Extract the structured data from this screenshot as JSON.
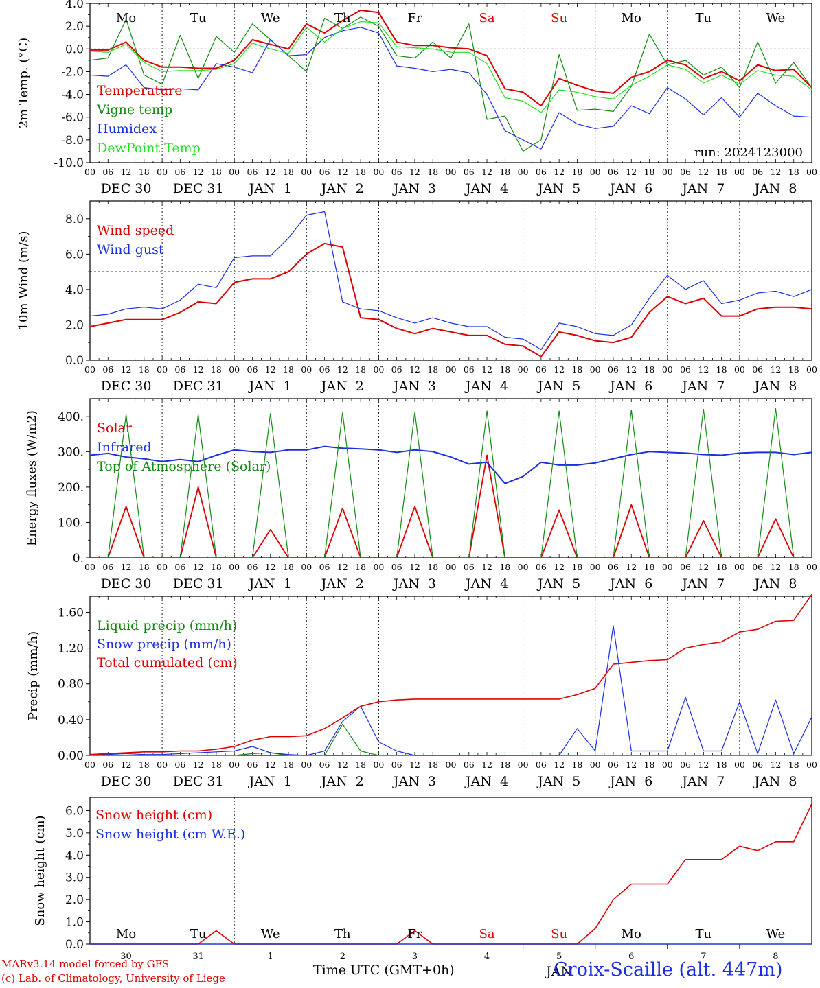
{
  "chart_data": [
    {
      "type": "line",
      "ylabel": "2m Temp. (°C)",
      "ylim": [
        -10,
        4
      ],
      "yticks": [
        "4.0",
        "2.0",
        "0.0",
        "-2.0",
        "-4.0",
        "-6.0",
        "-8.0",
        "-10.0"
      ],
      "ytick_values": [
        4,
        2,
        0,
        -2,
        -4,
        -6,
        -8,
        -10
      ],
      "reference_line": 0,
      "weekday_row": "top",
      "annotation": "run: 2024123000",
      "x_hours": [
        0,
        6,
        12,
        18,
        24,
        30,
        36,
        42,
        48,
        54,
        60,
        66,
        72,
        78,
        84,
        90,
        96,
        102,
        108,
        114,
        120,
        126,
        132,
        138,
        144,
        150,
        156,
        162,
        168,
        174,
        180,
        186,
        192,
        198,
        204,
        210,
        216,
        222,
        228,
        234,
        240
      ],
      "series": [
        {
          "name": "Temperature",
          "color": "#dd0000",
          "width": 2,
          "values": [
            -0.1,
            -0.1,
            0.6,
            -1.0,
            -1.6,
            -1.6,
            -1.7,
            -1.7,
            -1.0,
            0.8,
            0.4,
            0.0,
            2.2,
            1.4,
            2.5,
            3.4,
            3.2,
            0.6,
            0.3,
            0.3,
            0.1,
            0.0,
            -0.6,
            -3.5,
            -3.8,
            -5.0,
            -2.6,
            -3.2,
            -3.7,
            -3.9,
            -2.5,
            -2.0,
            -1.0,
            -1.4,
            -2.6,
            -2.0,
            -2.8,
            -1.4,
            -1.9,
            -1.8,
            -3.4
          ]
        },
        {
          "name": "Vigne temp",
          "color": "#138a13",
          "width": 1.2,
          "values": [
            -1.0,
            -0.8,
            2.6,
            -2.3,
            -3.1,
            1.2,
            -2.6,
            1.1,
            -0.3,
            2.2,
            0.8,
            -0.6,
            -2.0,
            2.7,
            1.8,
            2.8,
            2.0,
            -0.6,
            -0.8,
            0.6,
            -0.8,
            2.2,
            -6.2,
            -5.9,
            -9.0,
            -8.0,
            -0.5,
            -5.4,
            -5.3,
            -5.5,
            -3.3,
            1.3,
            -1.4,
            -1.0,
            -2.3,
            -1.6,
            -3.4,
            0.6,
            -3.0,
            -1.2,
            -3.4
          ]
        },
        {
          "name": "Humidex",
          "color": "#1a2fe0",
          "width": 1.2,
          "values": [
            -2.3,
            -2.4,
            -1.4,
            -3.4,
            -3.6,
            -3.5,
            -3.6,
            -1.3,
            -1.6,
            -2.1,
            0.8,
            -0.6,
            -0.5,
            1.0,
            1.6,
            1.9,
            1.4,
            -1.5,
            -1.7,
            -2.0,
            -1.8,
            -2.1,
            -4.0,
            -7.2,
            -8.0,
            -8.8,
            -5.6,
            -6.6,
            -7.0,
            -6.8,
            -5.0,
            -5.7,
            -3.4,
            -4.4,
            -5.8,
            -4.3,
            -6.0,
            -3.9,
            -5.0,
            -5.9,
            -6.0
          ]
        },
        {
          "name": "DewPoint Temp",
          "color": "#22e322",
          "width": 1.2,
          "values": [
            -0.2,
            -0.3,
            0.4,
            -1.2,
            -2.0,
            -1.9,
            -1.9,
            -1.8,
            -1.3,
            0.5,
            0.0,
            -0.4,
            1.9,
            0.6,
            1.8,
            2.4,
            2.3,
            0.2,
            0.1,
            0.0,
            -0.3,
            -0.3,
            -1.3,
            -4.3,
            -4.6,
            -5.6,
            -3.6,
            -3.8,
            -4.2,
            -4.4,
            -3.2,
            -2.4,
            -1.4,
            -1.8,
            -3.0,
            -2.3,
            -3.1,
            -1.9,
            -2.3,
            -2.4,
            -3.6
          ]
        }
      ]
    },
    {
      "type": "line",
      "ylabel": "10m Wind (m/s)",
      "ylim": [
        0,
        9
      ],
      "yticks": [
        "8.0",
        "6.0",
        "4.0",
        "2.0",
        "0.0"
      ],
      "ytick_values": [
        8,
        6,
        4,
        2,
        0
      ],
      "reference_line": 5,
      "x_hours": [
        0,
        6,
        12,
        18,
        24,
        30,
        36,
        42,
        48,
        54,
        60,
        66,
        72,
        78,
        84,
        90,
        96,
        102,
        108,
        114,
        120,
        126,
        132,
        138,
        144,
        150,
        156,
        162,
        168,
        174,
        180,
        186,
        192,
        198,
        204,
        210,
        216,
        222,
        228,
        234,
        240
      ],
      "series": [
        {
          "name": "Wind speed",
          "color": "#dd0000",
          "width": 2,
          "values": [
            1.9,
            2.1,
            2.3,
            2.3,
            2.3,
            2.7,
            3.3,
            3.2,
            4.4,
            4.6,
            4.6,
            5.0,
            6.0,
            6.6,
            6.4,
            2.4,
            2.3,
            1.8,
            1.5,
            1.8,
            1.6,
            1.4,
            1.4,
            0.9,
            0.8,
            0.2,
            1.6,
            1.4,
            1.1,
            1.0,
            1.3,
            2.7,
            3.6,
            3.2,
            3.5,
            2.5,
            2.5,
            2.9,
            3.0,
            3.0,
            2.9
          ]
        },
        {
          "name": "Wind gust",
          "color": "#1a2fe0",
          "width": 1.2,
          "values": [
            2.5,
            2.6,
            2.9,
            3.0,
            2.9,
            3.4,
            4.3,
            4.1,
            5.8,
            5.9,
            5.9,
            6.9,
            8.2,
            8.4,
            3.3,
            2.9,
            2.8,
            2.4,
            2.1,
            2.4,
            2.1,
            1.9,
            1.9,
            1.3,
            1.2,
            0.6,
            2.1,
            1.9,
            1.5,
            1.4,
            2.0,
            3.5,
            4.8,
            4.0,
            4.5,
            3.2,
            3.4,
            3.8,
            3.9,
            3.6,
            4.0
          ]
        }
      ]
    },
    {
      "type": "line",
      "ylabel": "Energy fluxes (W/m2)",
      "ylim": [
        0,
        450
      ],
      "yticks": [
        "400.",
        "300.",
        "200.",
        "100.",
        "0."
      ],
      "ytick_values": [
        400,
        300,
        200,
        100,
        0
      ],
      "x_hours": [
        0,
        6,
        12,
        18,
        24,
        30,
        36,
        42,
        48,
        54,
        60,
        66,
        72,
        78,
        84,
        90,
        96,
        102,
        108,
        114,
        120,
        126,
        132,
        138,
        144,
        150,
        156,
        162,
        168,
        174,
        180,
        186,
        192,
        198,
        204,
        210,
        216,
        222,
        228,
        234,
        240
      ],
      "series": [
        {
          "name": "Solar",
          "color": "#dd0000",
          "width": 1.8,
          "values": [
            0,
            0,
            145,
            0,
            0,
            0,
            200,
            0,
            0,
            0,
            80,
            0,
            0,
            0,
            140,
            0,
            0,
            0,
            145,
            0,
            0,
            0,
            290,
            0,
            0,
            0,
            135,
            0,
            0,
            0,
            150,
            0,
            0,
            0,
            105,
            0,
            0,
            0,
            110,
            0,
            0
          ]
        },
        {
          "name": "Infrared",
          "color": "#1a2fe0",
          "width": 2,
          "values": [
            290,
            295,
            285,
            280,
            272,
            278,
            272,
            290,
            305,
            300,
            298,
            305,
            305,
            315,
            310,
            308,
            305,
            298,
            305,
            300,
            285,
            265,
            270,
            210,
            230,
            270,
            262,
            262,
            268,
            280,
            292,
            300,
            298,
            296,
            292,
            290,
            296,
            298,
            298,
            292,
            298
          ]
        },
        {
          "name": "Top of Atmosphere (Solar)",
          "color": "#138a13",
          "width": 1.2,
          "values": [
            0,
            0,
            405,
            0,
            0,
            0,
            405,
            0,
            0,
            0,
            408,
            0,
            0,
            0,
            410,
            0,
            0,
            0,
            412,
            0,
            0,
            0,
            415,
            0,
            0,
            0,
            415,
            0,
            0,
            0,
            418,
            0,
            0,
            0,
            420,
            0,
            0,
            0,
            422,
            0,
            0
          ]
        }
      ]
    },
    {
      "type": "line",
      "ylabel": "Precip (mm/h)",
      "ylim": [
        0,
        1.78
      ],
      "yticks": [
        "1.60",
        "1.20",
        "0.80",
        "0.40",
        "0.00"
      ],
      "ytick_values": [
        1.6,
        1.2,
        0.8,
        0.4,
        0
      ],
      "x_hours": [
        0,
        6,
        12,
        18,
        24,
        30,
        36,
        42,
        48,
        54,
        60,
        66,
        72,
        78,
        84,
        90,
        96,
        102,
        108,
        114,
        120,
        126,
        132,
        138,
        144,
        150,
        156,
        162,
        168,
        174,
        180,
        186,
        192,
        198,
        204,
        210,
        216,
        222,
        228,
        234,
        240
      ],
      "series": [
        {
          "name": "Liquid precip (mm/h)",
          "color": "#138a13",
          "width": 1.2,
          "values": [
            0,
            0,
            0,
            0,
            0,
            0,
            0,
            0,
            0,
            0.02,
            0.03,
            0,
            0,
            0,
            0.35,
            0.05,
            0,
            0,
            0,
            0,
            0,
            0,
            0,
            0,
            0,
            0,
            0,
            0,
            0,
            0,
            0,
            0,
            0,
            0,
            0,
            0,
            0,
            0,
            0,
            0,
            0
          ]
        },
        {
          "name": "Snow precip (mm/h)",
          "color": "#1a2fe0",
          "width": 1.2,
          "values": [
            0.01,
            0.01,
            0.02,
            0.01,
            0.01,
            0.02,
            0.03,
            0.04,
            0.05,
            0.1,
            0.03,
            0.01,
            0,
            0.05,
            0.38,
            0.55,
            0.15,
            0.05,
            0,
            0,
            0,
            0,
            0,
            0,
            0,
            0,
            0,
            0.3,
            0.05,
            1.45,
            0.05,
            0.05,
            0.05,
            0.65,
            0.05,
            0.05,
            0.6,
            0.02,
            0.62,
            0.02,
            0.43
          ]
        },
        {
          "name": "Total cumulated (cm)",
          "color": "#dd0000",
          "width": 1.6,
          "values": [
            0.01,
            0.02,
            0.03,
            0.04,
            0.04,
            0.05,
            0.05,
            0.07,
            0.1,
            0.17,
            0.21,
            0.21,
            0.22,
            0.3,
            0.42,
            0.55,
            0.6,
            0.62,
            0.63,
            0.63,
            0.63,
            0.63,
            0.63,
            0.63,
            0.63,
            0.63,
            0.63,
            0.68,
            0.75,
            1.02,
            1.04,
            1.06,
            1.07,
            1.2,
            1.24,
            1.27,
            1.38,
            1.41,
            1.5,
            1.51,
            1.8
          ]
        }
      ]
    },
    {
      "type": "line",
      "ylabel": "Snow height (cm)",
      "ylim": [
        0,
        6.6
      ],
      "yticks": [
        "6.0",
        "5.0",
        "4.0",
        "3.0",
        "2.0",
        "1.0",
        "0.0"
      ],
      "ytick_values": [
        6,
        5,
        4,
        3,
        2,
        1,
        0
      ],
      "weekday_row": "bottom",
      "x_hours": [
        0,
        6,
        12,
        18,
        24,
        30,
        36,
        42,
        48,
        54,
        60,
        66,
        72,
        78,
        84,
        90,
        96,
        102,
        108,
        114,
        120,
        126,
        132,
        138,
        144,
        150,
        156,
        162,
        168,
        174,
        180,
        186,
        192,
        198,
        204,
        210,
        216,
        222,
        228,
        234,
        240
      ],
      "series": [
        {
          "name": "Snow height (cm)",
          "color": "#dd0000",
          "width": 1.6,
          "values": [
            0,
            0,
            0,
            0,
            0,
            0,
            0,
            0.6,
            0,
            0,
            0,
            0,
            0,
            0,
            0,
            0,
            0,
            0,
            0.6,
            0,
            0,
            0,
            0,
            0,
            0,
            0,
            0,
            0,
            0.7,
            2.0,
            2.7,
            2.7,
            2.7,
            3.8,
            3.8,
            3.8,
            4.4,
            4.2,
            4.6,
            4.6,
            6.3
          ]
        },
        {
          "name": "Snow height (cm W.E.)",
          "color": "#1a2fe0",
          "width": 1.2,
          "values": [
            0,
            0,
            0,
            0,
            0,
            0,
            0,
            0,
            0,
            0,
            0,
            0,
            0,
            0,
            0,
            0,
            0,
            0,
            0,
            0,
            0,
            0,
            0,
            0,
            0,
            0,
            0,
            0,
            0,
            0,
            0,
            0,
            0,
            0,
            0,
            0,
            0,
            0,
            0,
            0,
            0
          ]
        }
      ]
    }
  ],
  "hour_tick_labels": [
    "00",
    "06",
    "12",
    "18"
  ],
  "date_labels": [
    "DEC 30",
    "DEC 31",
    "JAN  1",
    "JAN  2",
    "JAN  3",
    "JAN  4",
    "JAN  5",
    "JAN  6",
    "JAN  7",
    "JAN  8"
  ],
  "weekdays": [
    {
      "label": "Mo",
      "color": "#000000"
    },
    {
      "label": "Tu",
      "color": "#000000"
    },
    {
      "label": "We",
      "color": "#000000"
    },
    {
      "label": "Th",
      "color": "#000000"
    },
    {
      "label": "Fr",
      "color": "#000000"
    },
    {
      "label": "Sa",
      "color": "#dd0000"
    },
    {
      "label": "Su",
      "color": "#dd0000"
    },
    {
      "label": "Mo",
      "color": "#000000"
    },
    {
      "label": "Tu",
      "color": "#000000"
    },
    {
      "label": "We",
      "color": "#000000"
    }
  ],
  "bottom_day_numbers": [
    "30",
    "31",
    "1",
    "2",
    "3",
    "4",
    "5",
    "6",
    "7",
    "8"
  ],
  "bottom_month_label": "JAN",
  "xaxis_title": "Time UTC (GMT+0h)",
  "credit_line_1": "MARv3.14 model forced by GFS",
  "credit_line_2": "(c) Lab. of Climatology, University of Liege",
  "station": "Croix-Scaille (alt. 447m)",
  "colors": {
    "red": "#dd0000",
    "green": "#138a13",
    "blue": "#1a2fe0",
    "light_green": "#22e322"
  }
}
